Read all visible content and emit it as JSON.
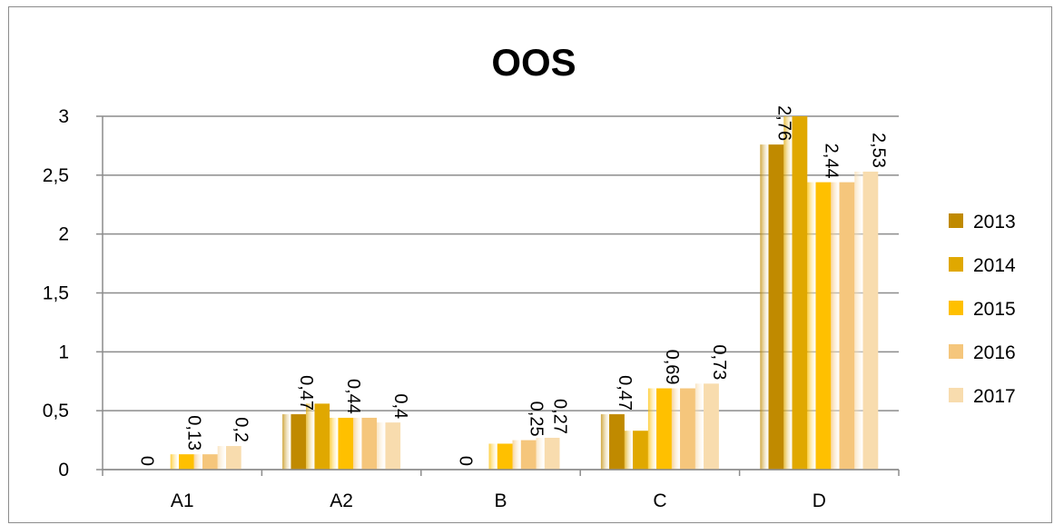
{
  "chart_data": {
    "type": "bar",
    "title": "OOS",
    "xlabel": "",
    "ylabel": "",
    "categories": [
      "A1",
      "A2",
      "B",
      "C",
      "D"
    ],
    "ylim": [
      0,
      3
    ],
    "yticks": [
      0,
      0.5,
      1,
      1.5,
      2,
      2.5,
      3
    ],
    "ytick_labels": [
      "0",
      "0,5",
      "1",
      "1,5",
      "2",
      "2,5",
      "3"
    ],
    "grid": true,
    "legend_position": "right",
    "series": [
      {
        "name": "2013",
        "color": "#c08a00",
        "values": [
          0,
          0.47,
          0,
          0.47,
          2.76
        ],
        "labels": [
          "0",
          "0,47",
          "0",
          "0,47",
          "2,76"
        ]
      },
      {
        "name": "2014",
        "color": "#e0a800",
        "values": [
          null,
          0.56,
          null,
          0.33,
          3.0
        ],
        "labels": [
          "",
          "",
          "",
          "",
          ""
        ]
      },
      {
        "name": "2015",
        "color": "#ffc000",
        "values": [
          0.13,
          0.44,
          0.22,
          0.69,
          2.44
        ],
        "labels": [
          "0,13",
          "0,44",
          "",
          "0,69",
          "2,44"
        ]
      },
      {
        "name": "2016",
        "color": "#f5c67c",
        "values": [
          0.13,
          0.44,
          0.25,
          0.69,
          2.44
        ],
        "labels": [
          "",
          "",
          "0,25",
          "",
          ""
        ]
      },
      {
        "name": "2017",
        "color": "#f8dcae",
        "values": [
          0.2,
          0.4,
          0.27,
          0.73,
          2.53
        ],
        "labels": [
          "0,2",
          "0,4",
          "0,27",
          "0,73",
          "2,53"
        ]
      }
    ]
  }
}
